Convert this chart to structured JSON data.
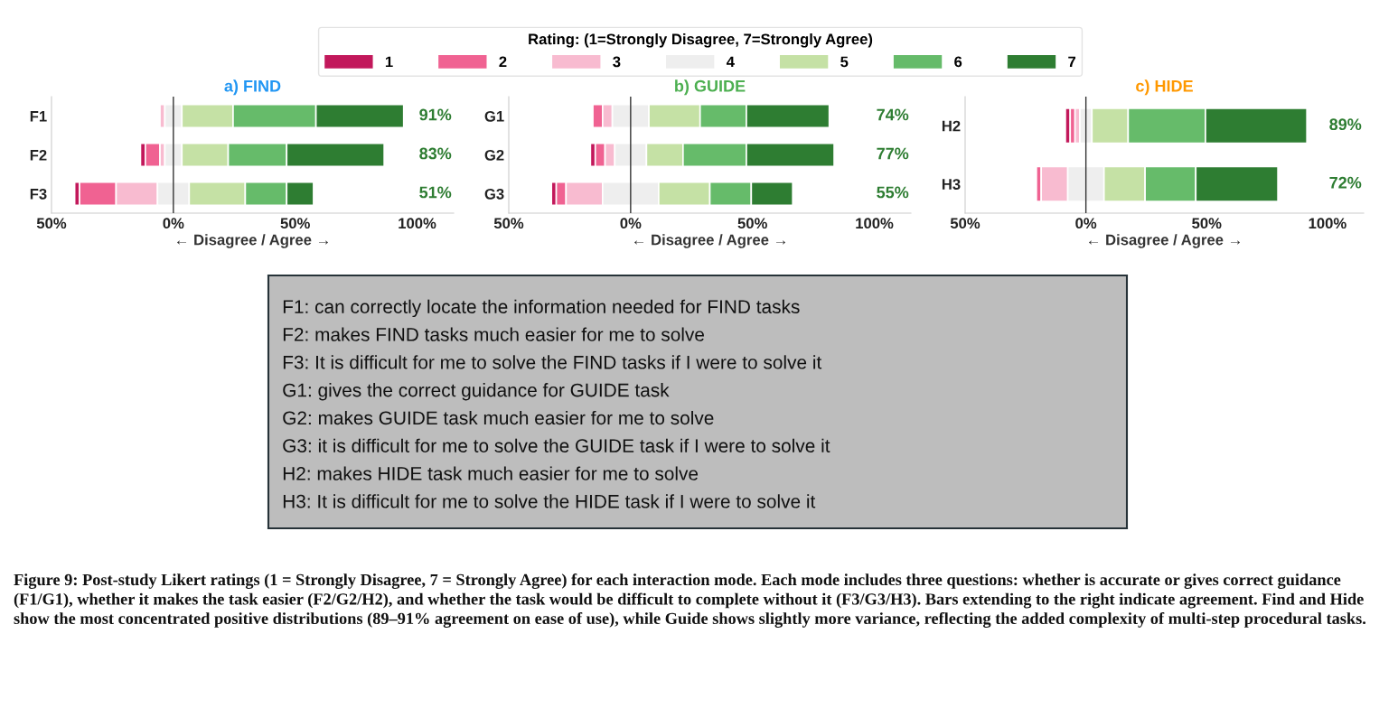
{
  "chart_data": [
    {
      "type": "bar",
      "orientation": "horizontal",
      "title": "a) FIND",
      "xlabel": "← Disagree / Agree →",
      "legend_title": "Rating: (1=Strongly Disagree, 7=Strongly Agree)",
      "legend": "top",
      "grid": false,
      "categories": [
        "F1",
        "F2",
        "F3"
      ],
      "series": [
        {
          "name": "1",
          "color": "#c2185b",
          "values": [
            null,
            2,
            2
          ],
          "base": [
            null,
            -13.5,
            -40.5
          ]
        },
        {
          "name": "2",
          "color": "#f06292",
          "values": [
            null,
            6,
            15
          ],
          "base": [
            null,
            -11.5,
            -38.5
          ]
        },
        {
          "name": "3",
          "color": "#f8bbd0",
          "values": [
            2,
            2,
            17
          ],
          "base": [
            -5.5,
            -5.5,
            -23.5
          ]
        },
        {
          "name": "4",
          "color": "#eeeeee",
          "values": [
            7,
            7,
            13
          ],
          "base": [
            -3.5,
            -3.5,
            -6.5
          ]
        },
        {
          "name": "5",
          "color": "#c5e1a5",
          "values": [
            21,
            19,
            23
          ],
          "base": [
            3.5,
            3.5,
            6.5
          ]
        },
        {
          "name": "6",
          "color": "#66bb6a",
          "values": [
            34,
            24,
            17
          ],
          "base": [
            24.5,
            22.5,
            29.5
          ]
        },
        {
          "name": "7",
          "color": "#2e7d32",
          "values": [
            36,
            40,
            11
          ],
          "base": [
            58.5,
            46.5,
            46.5
          ]
        }
      ],
      "annotations": [
        "91%",
        "83%",
        "51%"
      ],
      "xlim": [
        -50,
        115
      ],
      "xticks": [
        {
          "value": -50,
          "label": "50%"
        },
        {
          "value": 0,
          "label": "0%"
        },
        {
          "value": 50,
          "label": "50%"
        },
        {
          "value": 100,
          "label": "100%"
        }
      ],
      "ref_lines": [
        {
          "axis": "x",
          "value": 0,
          "color": "#333333"
        }
      ]
    },
    {
      "type": "bar",
      "orientation": "horizontal",
      "title": "b) GUIDE",
      "xlabel": "← Disagree / Agree →",
      "grid": false,
      "categories": [
        "G1",
        "G2",
        "G3"
      ],
      "series": [
        {
          "color": "#c2185b",
          "values": [
            null,
            2,
            2
          ],
          "base": [
            null,
            -16.5,
            -32.5
          ]
        },
        {
          "color": "#f06292",
          "values": [
            4,
            4,
            4
          ],
          "base": [
            -15.5,
            -14.5,
            -30.5
          ]
        },
        {
          "color": "#f8bbd0",
          "values": [
            4,
            4,
            15
          ],
          "base": [
            -11.5,
            -10.5,
            -26.5
          ]
        },
        {
          "color": "#eeeeee",
          "values": [
            15,
            13,
            23
          ],
          "base": [
            -7.5,
            -6.5,
            -11.5
          ]
        },
        {
          "color": "#c5e1a5",
          "values": [
            21,
            15,
            21
          ],
          "base": [
            7.5,
            6.5,
            11.5
          ]
        },
        {
          "color": "#66bb6a",
          "values": [
            19,
            26,
            17
          ],
          "base": [
            28.5,
            21.5,
            32.5
          ]
        },
        {
          "color": "#2e7d32",
          "values": [
            34,
            36,
            17
          ],
          "base": [
            47.5,
            47.5,
            49.5
          ]
        }
      ],
      "annotations": [
        "74%",
        "77%",
        "55%"
      ],
      "xlim": [
        -50,
        115
      ],
      "xticks": [
        {
          "value": -50,
          "label": "50%"
        },
        {
          "value": 0,
          "label": "0%"
        },
        {
          "value": 50,
          "label": "50%"
        },
        {
          "value": 100,
          "label": "100%"
        }
      ],
      "ref_lines": [
        {
          "axis": "x",
          "value": 0,
          "color": "#333333"
        }
      ]
    },
    {
      "type": "bar",
      "orientation": "horizontal",
      "title": "c) HIDE",
      "xlabel": "← Disagree / Agree →",
      "grid": false,
      "categories": [
        "H2",
        "H3"
      ],
      "series": [
        {
          "color": "#c2185b",
          "values": [
            2,
            null
          ],
          "base": [
            -8.5,
            null
          ]
        },
        {
          "color": "#f06292",
          "values": [
            2,
            2
          ],
          "base": [
            -6.5,
            -20.5
          ]
        },
        {
          "color": "#f8bbd0",
          "values": [
            2,
            11
          ],
          "base": [
            -4.5,
            -18.5
          ]
        },
        {
          "color": "#eeeeee",
          "values": [
            5,
            15
          ],
          "base": [
            -2.5,
            -7.5
          ]
        },
        {
          "color": "#c5e1a5",
          "values": [
            15,
            17
          ],
          "base": [
            2.5,
            7.5
          ]
        },
        {
          "color": "#66bb6a",
          "values": [
            32,
            21
          ],
          "base": [
            17.5,
            24.5
          ]
        },
        {
          "color": "#2e7d32",
          "values": [
            42,
            34
          ],
          "base": [
            49.5,
            45.5
          ]
        }
      ],
      "annotations": [
        "89%",
        "72%"
      ],
      "xlim": [
        -50,
        115
      ],
      "xticks": [
        {
          "value": -50,
          "label": "50%"
        },
        {
          "value": 0,
          "label": "0%"
        },
        {
          "value": 50,
          "label": "50%"
        },
        {
          "value": 100,
          "label": "100%"
        }
      ],
      "ref_lines": [
        {
          "axis": "x",
          "value": 0,
          "color": "#333333"
        }
      ]
    },
    {
      "type": "other",
      "annotations": [
        "F1: can correctly locate the information needed for FIND tasks",
        "F2: makes FIND tasks much easier for me to solve",
        "F3: It is difficult for me to solve the FIND tasks if I were to solve it",
        "G1: gives the correct guidance for GUIDE task",
        "G2: makes GUIDE task much easier for me to solve",
        "G3: it is difficult for me to solve the GUIDE task if I were to solve it",
        "H2: makes HIDE task much easier for me to solve",
        "H3: It is difficult for me to solve the HIDE task if I were to solve it"
      ]
    },
    {
      "type": "other",
      "annotations": [
        "Figure 9: Post-study Likert ratings (1 = Strongly Disagree, 7 = Strongly Agree) for each interaction mode. Each mode includes three questions: whether is accurate or gives correct guidance (F1/G1), whether it makes the task easier (F2/G2/H2), and whether the task would be difficult to complete without it (F3/G3/H3). Bars extending to the right indicate agreement. Find and Hide show the most concentrated positive distributions (89–91% agreement on ease of use), while Guide shows slightly more variance, reflecting the added complexity of multi-step procedural tasks."
      ]
    }
  ]
}
